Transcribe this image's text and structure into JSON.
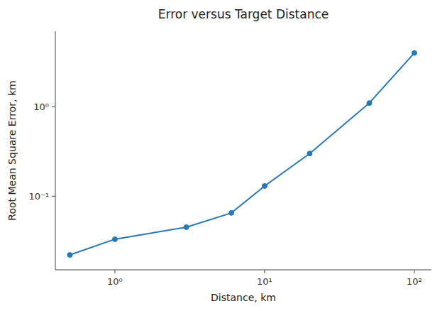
{
  "chart_data": {
    "type": "line",
    "title": "Error versus Target Distance",
    "x_label": "Distance, km",
    "y_label": "Root Mean Square Error, km",
    "x": [
      0.5,
      1.0,
      3.0,
      6.0,
      10.0,
      20.0,
      50.0,
      100.0
    ],
    "values": [
      0.022,
      0.033,
      0.045,
      0.065,
      0.13,
      0.3,
      1.1,
      4.0
    ],
    "color": "#2878b5",
    "marker": "circle",
    "log": true,
    "xlim": [
      0.4,
      130
    ],
    "ylim": [
      0.015,
      7.0
    ],
    "xticks": [
      {
        "value": 1,
        "label": "10⁰"
      },
      {
        "value": 10,
        "label": "10¹"
      },
      {
        "value": 100,
        "label": "10²"
      }
    ],
    "yticks": [
      {
        "value": 0.1,
        "label": "10⁻¹"
      },
      {
        "value": 1,
        "label": "10⁰"
      }
    ],
    "grid": false
  }
}
